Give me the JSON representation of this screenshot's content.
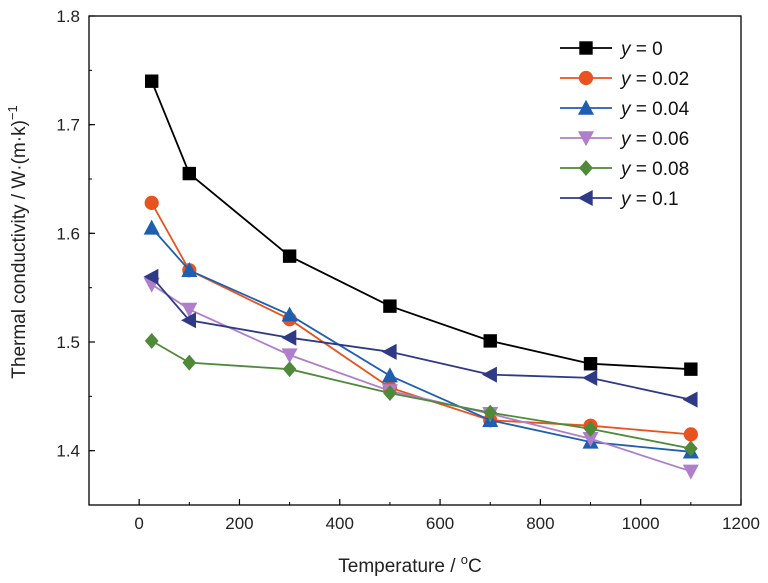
{
  "chart_data": {
    "type": "line",
    "xlabel": "Temperature / ",
    "xlabel_unit": "C",
    "xlabel_unit_sup": "o",
    "ylabel": "Thermal conductivity / W·(m·k)",
    "ylabel_sup": "−1",
    "xlim": [
      -100,
      1200
    ],
    "ylim": [
      1.35,
      1.8
    ],
    "xticks": [
      0,
      200,
      400,
      600,
      800,
      1000,
      1200
    ],
    "yticks": [
      1.4,
      1.5,
      1.6,
      1.7,
      1.8
    ],
    "ytick_labels": [
      "1.4",
      "1.5",
      "1.6",
      "1.7",
      "1.8"
    ],
    "grid": false,
    "legend_position": "top-right",
    "x": [
      25,
      100,
      300,
      500,
      700,
      900,
      1100
    ],
    "series": [
      {
        "name": "y = 0",
        "name_var": "y",
        "name_val": " = 0",
        "marker": "square",
        "color": "#000000",
        "values": [
          1.74,
          1.655,
          1.579,
          1.533,
          1.501,
          1.48,
          1.475
        ]
      },
      {
        "name": "y = 0.02",
        "name_var": "y",
        "name_val": " = 0.02",
        "marker": "circle",
        "color": "#E8531F",
        "values": [
          1.628,
          1.566,
          1.521,
          1.458,
          1.428,
          1.423,
          1.415
        ]
      },
      {
        "name": "y = 0.04",
        "name_var": "y",
        "name_val": " = 0.04",
        "marker": "triangle-up",
        "color": "#1F5FB0",
        "values": [
          1.605,
          1.566,
          1.525,
          1.469,
          1.428,
          1.408,
          1.399
        ]
      },
      {
        "name": "y = 0.06",
        "name_var": "y",
        "name_val": " = 0.06",
        "marker": "triangle-down",
        "color": "#B07FCC",
        "values": [
          1.553,
          1.53,
          1.488,
          1.455,
          1.434,
          1.411,
          1.381
        ]
      },
      {
        "name": "y = 0.08",
        "name_var": "y",
        "name_val": " = 0.08",
        "marker": "diamond",
        "color": "#4E8A3A",
        "values": [
          1.501,
          1.481,
          1.475,
          1.453,
          1.435,
          1.42,
          1.402
        ]
      },
      {
        "name": "y = 0.1",
        "name_var": "y",
        "name_val": " = 0.1",
        "marker": "triangle-left",
        "color": "#2E3A86",
        "values": [
          1.56,
          1.52,
          1.504,
          1.491,
          1.47,
          1.467,
          1.447
        ]
      }
    ]
  }
}
